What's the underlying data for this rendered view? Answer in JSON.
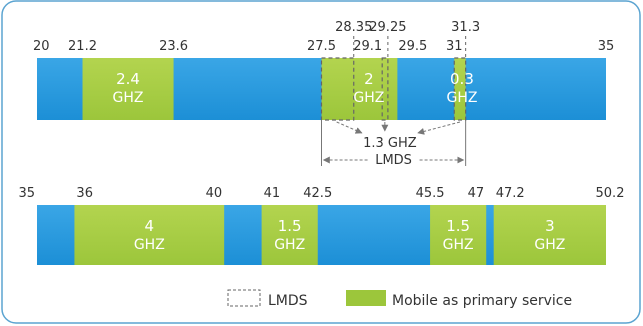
{
  "colors": {
    "frame": "#5ba4d1",
    "band_blue": "#1c8fd6",
    "band_blue_light": "#3aa6e6",
    "band_green": "#9cc63b",
    "band_green_light": "#b3d44f",
    "text_dark": "#333333",
    "text_white": "#ffffff",
    "lmds_dash": "#666666",
    "arrow": "#777777"
  },
  "row1": {
    "ticks": [
      {
        "value": 20,
        "label": "20",
        "level": "low"
      },
      {
        "value": 21.2,
        "label": "21.2",
        "level": "low"
      },
      {
        "value": 23.6,
        "label": "23.6",
        "level": "low"
      },
      {
        "value": 27.5,
        "label": "27.5",
        "level": "low"
      },
      {
        "value": 28.35,
        "label": "28.35",
        "level": "high"
      },
      {
        "value": 29.1,
        "label": "29.1",
        "level": "low"
      },
      {
        "value": 29.25,
        "label": "29.25",
        "level": "high"
      },
      {
        "value": 29.5,
        "label": "29.5",
        "level": "low"
      },
      {
        "value": 31,
        "label": "31",
        "level": "low"
      },
      {
        "value": 31.3,
        "label": "31.3",
        "level": "high"
      },
      {
        "value": 35,
        "label": "35",
        "level": "low"
      }
    ],
    "mobile_bands": [
      {
        "from": 21.2,
        "to": 23.6,
        "line1": "2.4",
        "line2": "GHZ"
      },
      {
        "from": 27.5,
        "to": 29.5,
        "line1": "2",
        "line2": "GHZ"
      },
      {
        "from": 31,
        "to": 31.3,
        "line1": "0.3",
        "line2": "GHZ"
      }
    ],
    "lmds_boxes": [
      {
        "from": 27.5,
        "to": 28.35
      },
      {
        "from": 29.1,
        "to": 29.25
      },
      {
        "from": 31,
        "to": 31.3
      }
    ],
    "lmds_sum_label": "1.3 GHZ",
    "lmds_range_label": "LMDS"
  },
  "row2": {
    "ticks": [
      {
        "value": 35,
        "label": "35",
        "align": "end"
      },
      {
        "value": 36,
        "label": "36",
        "align": "start"
      },
      {
        "value": 40,
        "label": "40",
        "align": "end"
      },
      {
        "value": 41,
        "label": "41",
        "align": "start"
      },
      {
        "value": 42.5,
        "label": "42.5",
        "align": "middle"
      },
      {
        "value": 45.5,
        "label": "45.5",
        "align": "middle"
      },
      {
        "value": 47,
        "label": "47",
        "align": "end"
      },
      {
        "value": 47.2,
        "label": "47.2",
        "align": "start"
      },
      {
        "value": 50.2,
        "label": "50.2",
        "align": "middle"
      }
    ],
    "mobile_bands": [
      {
        "from": 36,
        "to": 40,
        "line1": "4",
        "line2": "GHZ"
      },
      {
        "from": 41,
        "to": 42.5,
        "line1": "1.5",
        "line2": "GHZ"
      },
      {
        "from": 45.5,
        "to": 47,
        "line1": "1.5",
        "line2": "GHZ"
      },
      {
        "from": 47.2,
        "to": 50.2,
        "line1": "3",
        "line2": "GHZ"
      }
    ]
  },
  "legend": {
    "lmds_label": "LMDS",
    "mobile_label": "Mobile as primary service"
  }
}
